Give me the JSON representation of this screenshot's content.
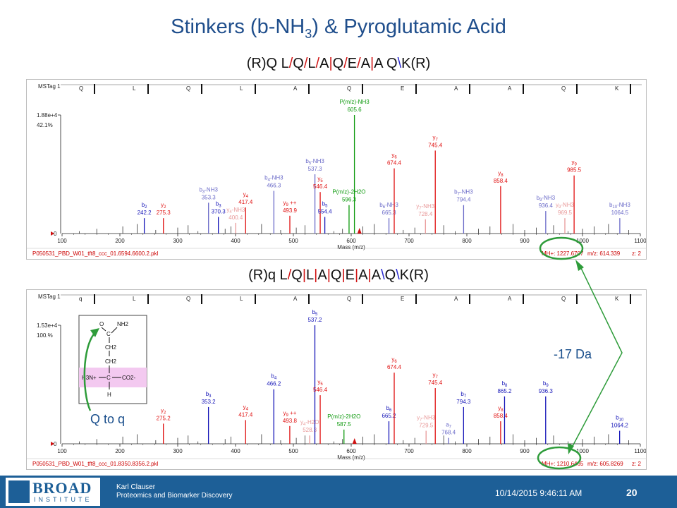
{
  "title": {
    "main": "Stinkers (b-NH",
    "sub": "3",
    "rest": ") & Pyroglutamic Acid"
  },
  "seq1": [
    [
      "(R)Q L",
      "k"
    ],
    [
      "/",
      "r"
    ],
    [
      "Q",
      "k"
    ],
    [
      "/",
      "r"
    ],
    [
      "L",
      "k"
    ],
    [
      "/",
      "r"
    ],
    [
      "A",
      "k"
    ],
    [
      "|",
      "r"
    ],
    [
      "Q",
      "k"
    ],
    [
      "/",
      "r"
    ],
    [
      "E",
      "k"
    ],
    [
      "/",
      "r"
    ],
    [
      "A",
      "k"
    ],
    [
      "|",
      "r"
    ],
    [
      "A Q",
      "k"
    ],
    [
      "\\",
      "b"
    ],
    [
      "K(R)",
      "k"
    ]
  ],
  "seq2": [
    [
      "(R)q L",
      "k"
    ],
    [
      "/",
      "r"
    ],
    [
      "Q",
      "k"
    ],
    [
      "|",
      "r"
    ],
    [
      "L",
      "k"
    ],
    [
      "|",
      "r"
    ],
    [
      "A",
      "k"
    ],
    [
      "|",
      "r"
    ],
    [
      "Q",
      "k"
    ],
    [
      "|",
      "r"
    ],
    [
      "E",
      "k"
    ],
    [
      "|",
      "r"
    ],
    [
      "A",
      "k"
    ],
    [
      "|",
      "r"
    ],
    [
      "A",
      "k"
    ],
    [
      "\\",
      "b"
    ],
    [
      "Q",
      "k"
    ],
    [
      "\\",
      "b"
    ],
    [
      "K(R)",
      "k"
    ]
  ],
  "annotations": {
    "minus17": "-17 Da",
    "qtoq": "Q to q"
  },
  "structure": {
    "o": "O",
    "c_top": "C",
    "nh2": "NH2",
    "ch2a": "CH2",
    "ch2b": "CH2",
    "h3n": "H3N+",
    "c_mid": "C",
    "co2": "CO2-",
    "h": "H"
  },
  "footer": {
    "logo": "BROAD",
    "logo_sub": "INSTITUTE",
    "author": "Karl Clauser",
    "dept": "Proteomics and Biomarker Discovery",
    "date": "10/14/2015 9:46:11 AM",
    "slide": "20"
  },
  "chart_data": [
    {
      "type": "bar",
      "title": "MSTag 1",
      "xlabel": "Mass (m/z)",
      "xlim": [
        100,
        1100
      ],
      "xticks": [
        100,
        200,
        300,
        400,
        500,
        600,
        700,
        800,
        900,
        1000,
        1100
      ],
      "ylim": [
        0,
        100
      ],
      "ytop_labels": [
        "1.88e+4",
        "42.1%"
      ],
      "residues": [
        "Q",
        "L",
        "Q",
        "L",
        "A",
        "Q",
        "E",
        "A",
        "A",
        "Q",
        "K"
      ],
      "file": "P050531_PBD_W01_tft8_ccc_01.6594.6600.2.pkl",
      "mh": "MH+: 1227.6707",
      "mz": "m/z: 614.339",
      "z": "z: 2",
      "precursor_mz": 614.3,
      "peaks": [
        {
          "mz": 242.2,
          "h": 13,
          "c": "b",
          "lab": [
            "b2",
            "242.2"
          ]
        },
        {
          "mz": 275.3,
          "h": 13,
          "c": "r",
          "lab": [
            "y2",
            "275.3"
          ]
        },
        {
          "mz": 353.3,
          "h": 26,
          "c": "lb",
          "lab": [
            "b3-NH3",
            "353.3"
          ]
        },
        {
          "mz": 370.3,
          "h": 14,
          "c": "b",
          "lab": [
            "b3",
            "370.3"
          ]
        },
        {
          "mz": 400.4,
          "h": 9,
          "c": "pr",
          "lab": [
            "y4-NH3",
            "400.4"
          ]
        },
        {
          "mz": 417.4,
          "h": 22,
          "c": "r",
          "lab": [
            "y4",
            "417.4"
          ]
        },
        {
          "mz": 466.3,
          "h": 36,
          "c": "lb",
          "lab": [
            "b4-NH3",
            "466.3"
          ]
        },
        {
          "mz": 493.9,
          "h": 15,
          "c": "r",
          "lab": [
            "y9 ++",
            "493.9"
          ]
        },
        {
          "mz": 537.3,
          "h": 50,
          "c": "lb",
          "lab": [
            "b5-NH3",
            "537.3"
          ]
        },
        {
          "mz": 546.4,
          "h": 35,
          "c": "r",
          "lab": [
            "y5",
            "546.4"
          ]
        },
        {
          "mz": 554.4,
          "h": 14,
          "c": "b",
          "lab": [
            "b5",
            "554.4"
          ]
        },
        {
          "mz": 596.3,
          "h": 24,
          "c": "g",
          "lab": [
            "P(m/z)-2H2O",
            "596.3"
          ]
        },
        {
          "mz": 605.6,
          "h": 100,
          "c": "g",
          "lab": [
            "P(m/z)-NH3",
            "605.6"
          ]
        },
        {
          "mz": 665.3,
          "h": 13,
          "c": "lb",
          "lab": [
            "b6-NH3",
            "665.3"
          ]
        },
        {
          "mz": 674.4,
          "h": 55,
          "c": "r",
          "lab": [
            "y6",
            "674.4"
          ]
        },
        {
          "mz": 728.4,
          "h": 12,
          "c": "pr",
          "lab": [
            "y7-NH3",
            "728.4"
          ]
        },
        {
          "mz": 745.4,
          "h": 70,
          "c": "r",
          "lab": [
            "y7",
            "745.4"
          ]
        },
        {
          "mz": 794.4,
          "h": 24,
          "c": "lb",
          "lab": [
            "b7-NH3",
            "794.4"
          ]
        },
        {
          "mz": 858.4,
          "h": 40,
          "c": "r",
          "lab": [
            "y8",
            "858.4"
          ]
        },
        {
          "mz": 936.4,
          "h": 19,
          "c": "lb",
          "lab": [
            "b9-NH3",
            "936.4"
          ]
        },
        {
          "mz": 969.5,
          "h": 13,
          "c": "pr",
          "lab": [
            "y9-NH3",
            "969.5"
          ]
        },
        {
          "mz": 985.5,
          "h": 49,
          "c": "r",
          "lab": [
            "y9",
            "985.5"
          ]
        },
        {
          "mz": 1064.5,
          "h": 13,
          "c": "lb",
          "lab": [
            "b10-NH3",
            "1064.5"
          ]
        }
      ]
    },
    {
      "type": "bar",
      "title": "MSTag 1",
      "xlabel": "Mass (m/z)",
      "xlim": [
        100,
        1100
      ],
      "xticks": [
        100,
        200,
        300,
        400,
        500,
        600,
        700,
        800,
        900,
        1000,
        1100
      ],
      "ylim": [
        0,
        100
      ],
      "ytop_labels": [
        "1.53e+4",
        "100.%"
      ],
      "residues": [
        "q",
        "L",
        "Q",
        "L",
        "A",
        "Q",
        "E",
        "A",
        "A",
        "Q",
        "K"
      ],
      "file": "P050531_PBD_W01_tft8_ccc_01.8350.8356.2.pkl",
      "mh": "MH+: 1210.6465",
      "mz": "m/z: 605.8269",
      "z": "z: 2",
      "precursor_mz": 605.8,
      "peaks": [
        {
          "mz": 275.2,
          "h": 17,
          "c": "r",
          "lab": [
            "y2",
            "275.2"
          ]
        },
        {
          "mz": 353.2,
          "h": 31,
          "c": "b",
          "lab": [
            "b3",
            "353.2"
          ]
        },
        {
          "mz": 417.4,
          "h": 20,
          "c": "r",
          "lab": [
            "y4",
            "417.4"
          ]
        },
        {
          "mz": 466.2,
          "h": 46,
          "c": "b",
          "lab": [
            "b4",
            "466.2"
          ]
        },
        {
          "mz": 493.8,
          "h": 15,
          "c": "r",
          "lab": [
            "y9 ++",
            "493.8"
          ]
        },
        {
          "mz": 528.3,
          "h": 7,
          "c": "pr",
          "lab": [
            "y4-H2O",
            "528.3"
          ]
        },
        {
          "mz": 537.2,
          "h": 100,
          "c": "b",
          "lab": [
            "b5",
            "537.2"
          ]
        },
        {
          "mz": 546.4,
          "h": 41,
          "c": "r",
          "lab": [
            "y5",
            "546.4"
          ]
        },
        {
          "mz": 587.5,
          "h": 12,
          "c": "g",
          "lab": [
            "P(m/z)-2H2O",
            "587.5"
          ]
        },
        {
          "mz": 665.2,
          "h": 19,
          "c": "b",
          "lab": [
            "b6",
            "665.2"
          ]
        },
        {
          "mz": 674.4,
          "h": 60,
          "c": "r",
          "lab": [
            "y6",
            "674.4"
          ]
        },
        {
          "mz": 729.5,
          "h": 11,
          "c": "pr",
          "lab": [
            "y7-NH3",
            "729.5"
          ]
        },
        {
          "mz": 745.4,
          "h": 47,
          "c": "r",
          "lab": [
            "y7",
            "745.4"
          ]
        },
        {
          "mz": 768.4,
          "h": 5,
          "c": "lb",
          "lab": [
            "a7",
            "768.4"
          ]
        },
        {
          "mz": 794.3,
          "h": 31,
          "c": "b",
          "lab": [
            "b7",
            "794.3"
          ]
        },
        {
          "mz": 858.4,
          "h": 19,
          "c": "r",
          "lab": [
            "y8",
            "858.4"
          ]
        },
        {
          "mz": 865.2,
          "h": 40,
          "c": "b",
          "lab": [
            "b8",
            "865.2"
          ]
        },
        {
          "mz": 936.3,
          "h": 40,
          "c": "b",
          "lab": [
            "b9",
            "936.3"
          ]
        },
        {
          "mz": 1064.2,
          "h": 11,
          "c": "b",
          "lab": [
            "b10",
            "1064.2"
          ]
        }
      ]
    }
  ]
}
